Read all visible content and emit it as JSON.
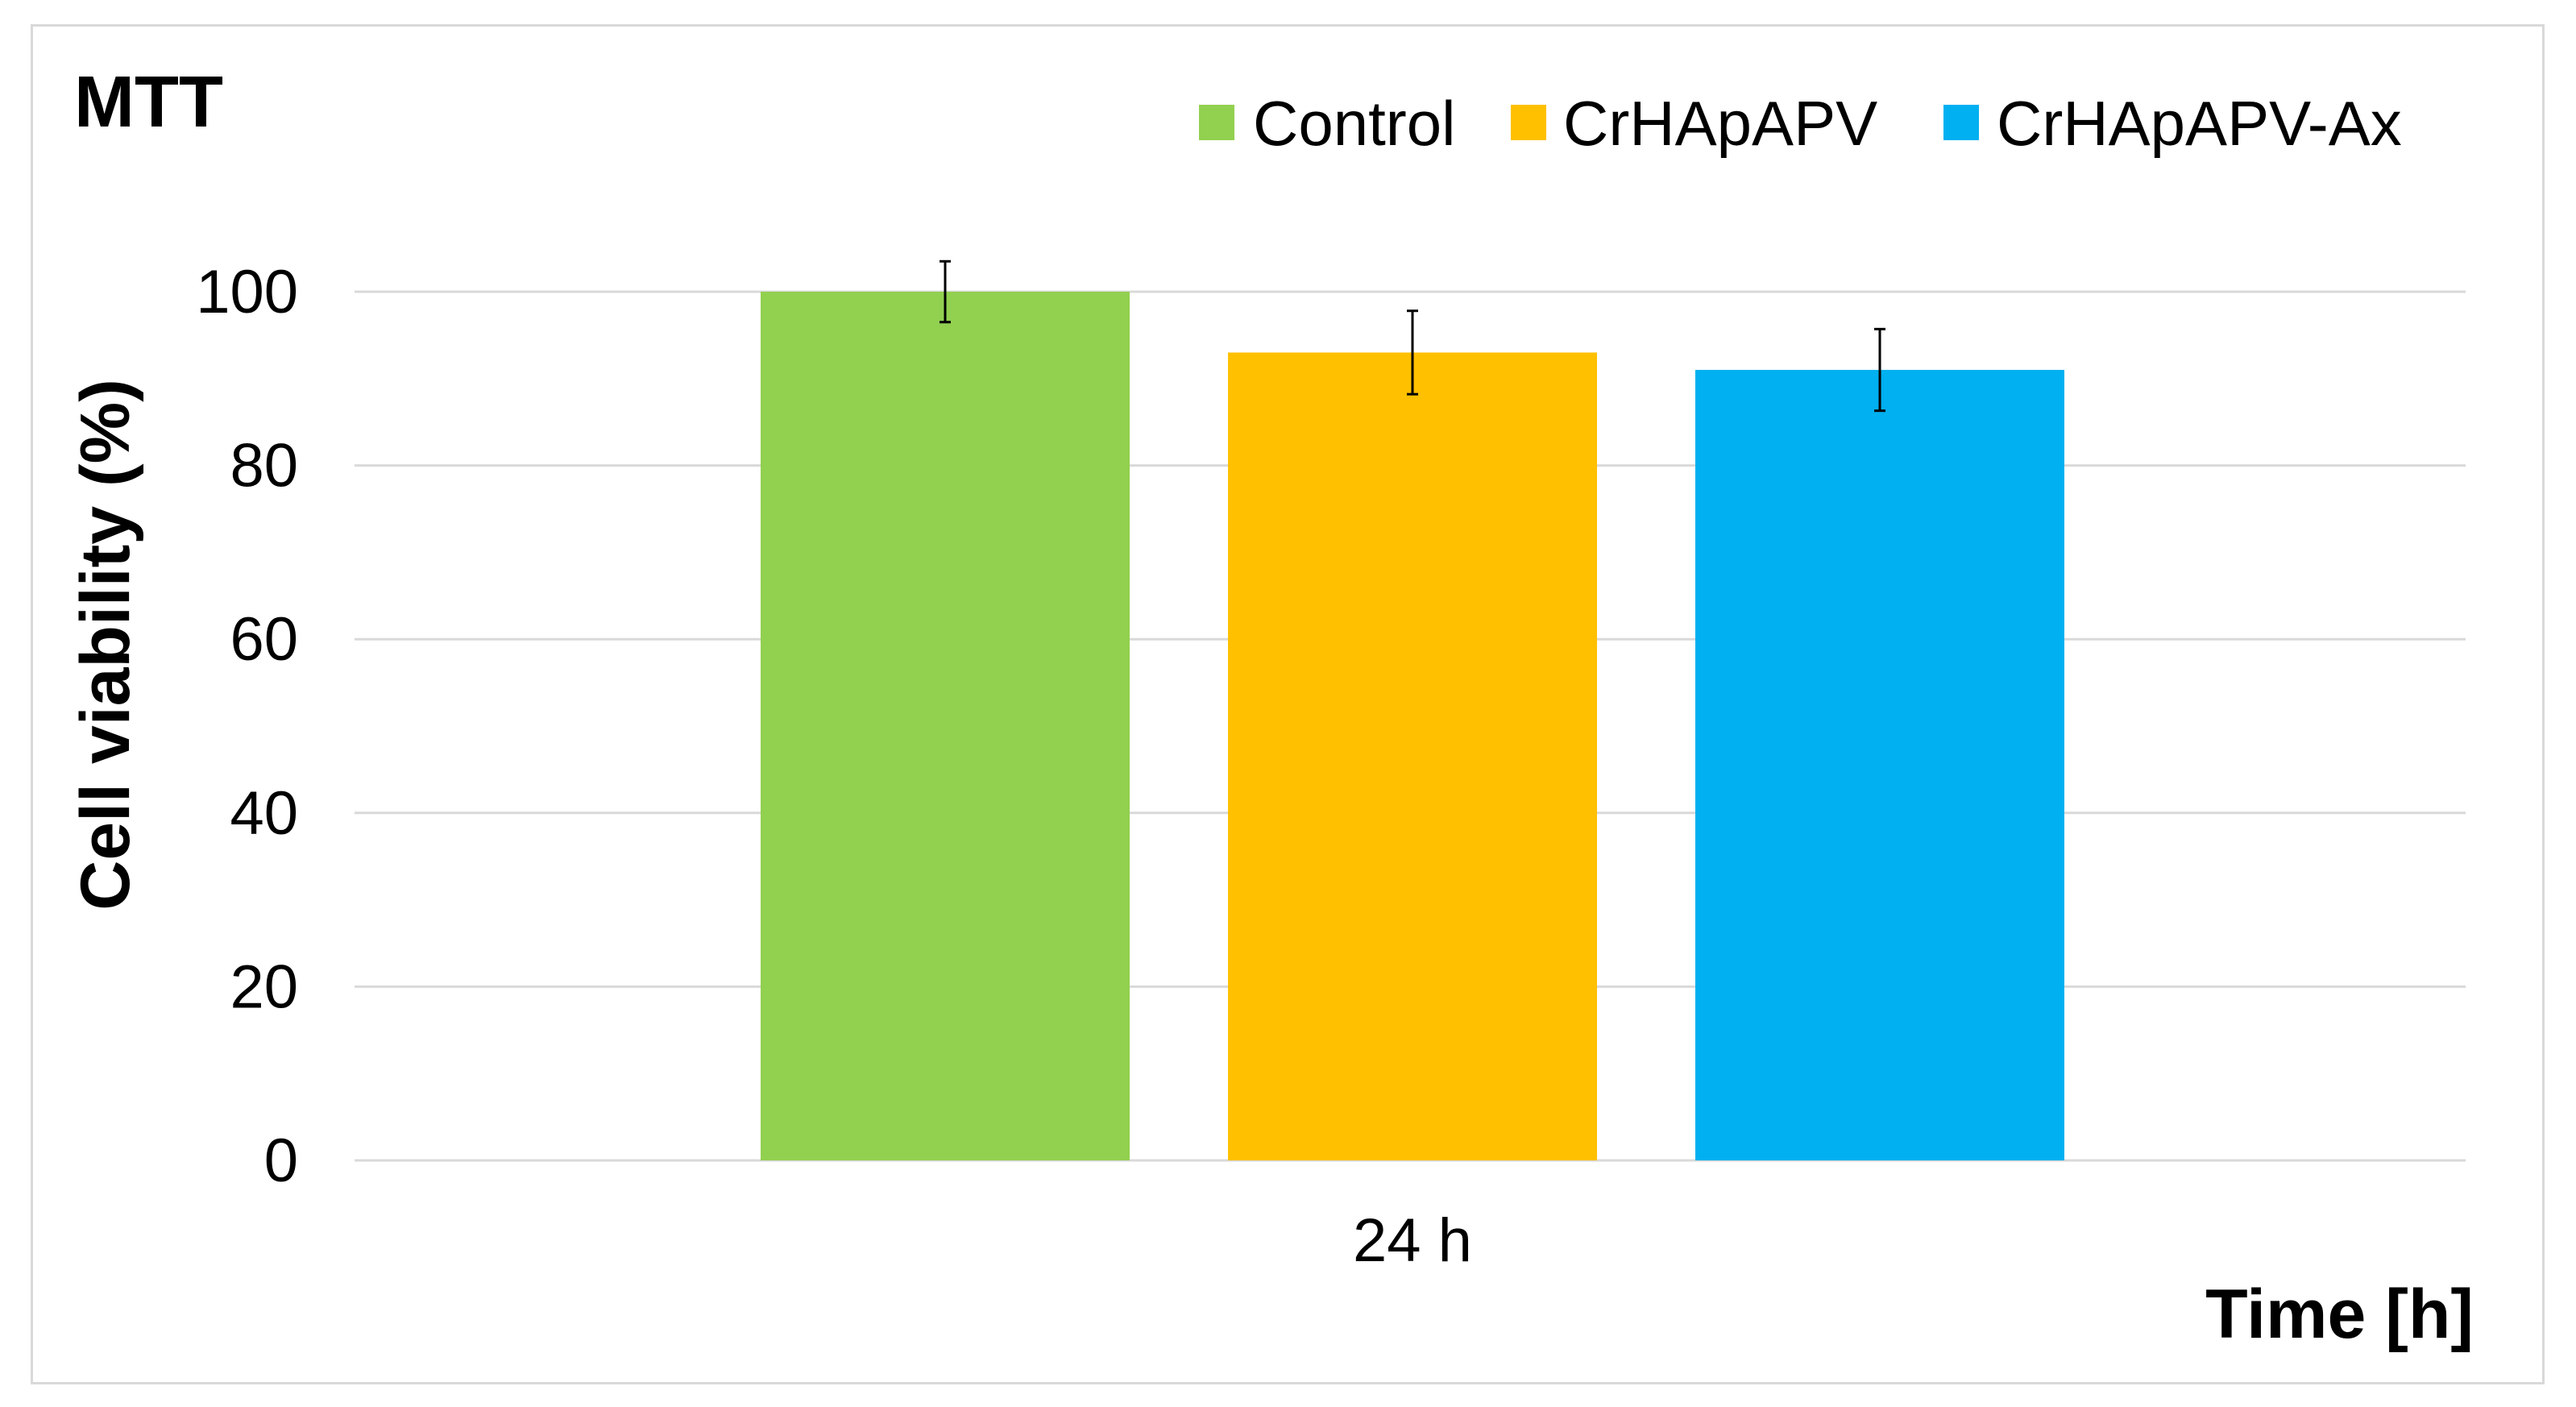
{
  "chart_data": {
    "type": "bar",
    "title": "MTT",
    "xlabel": "Time [h]",
    "ylabel": "Cell viability (%)",
    "categories": [
      "24 h"
    ],
    "series": [
      {
        "name": "Control",
        "color": "#92d050",
        "values": [
          100
        ],
        "error": [
          3.5
        ]
      },
      {
        "name": "CrHApAPV",
        "color": "#ffc000",
        "values": [
          93
        ],
        "error": [
          4.8
        ]
      },
      {
        "name": "CrHApAPV-Ax",
        "color": "#00b0f0",
        "values": [
          91
        ],
        "error": [
          4.7
        ]
      }
    ],
    "ylim": [
      0,
      100
    ],
    "yticks": [
      0,
      20,
      40,
      60,
      80,
      100
    ],
    "grid": true,
    "legend": "top-right"
  }
}
